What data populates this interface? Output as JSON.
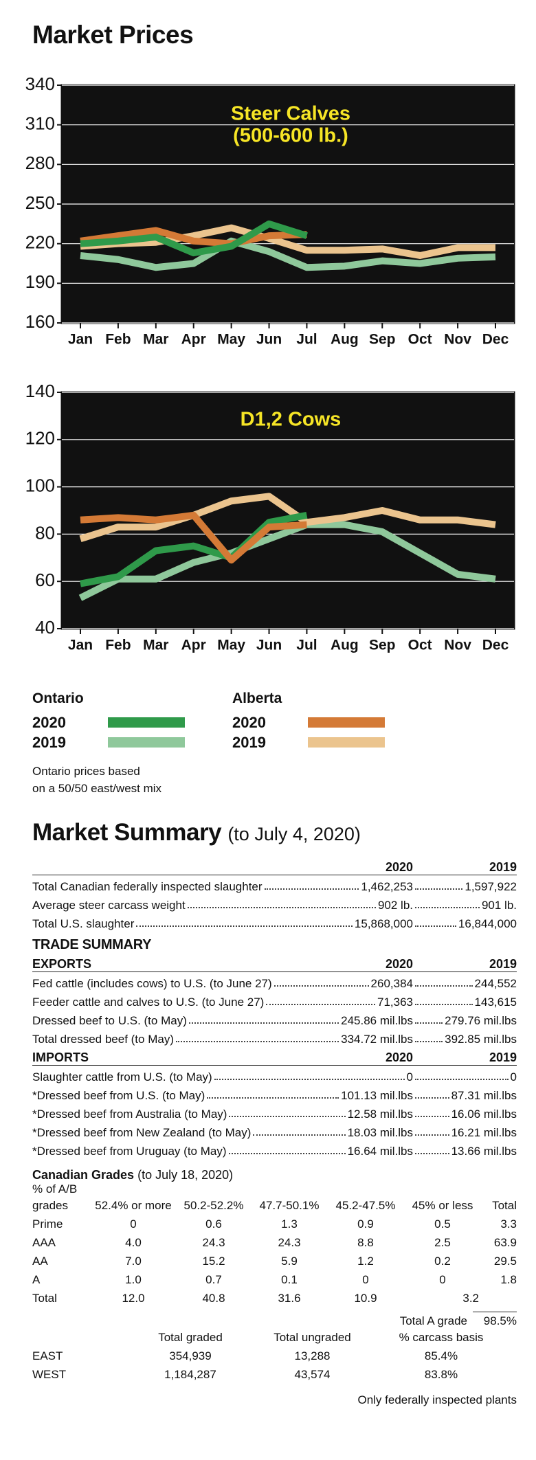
{
  "title": "Market Prices",
  "chart_data": [
    {
      "type": "line",
      "title_lines": [
        "Steer Calves",
        "(500-600 lb.)"
      ],
      "categories": [
        "Jan",
        "Feb",
        "Mar",
        "Apr",
        "May",
        "Jun",
        "Jul",
        "Aug",
        "Sep",
        "Oct",
        "Nov",
        "Dec"
      ],
      "ylim": [
        160,
        340
      ],
      "yticks": [
        160,
        190,
        220,
        250,
        280,
        310,
        340
      ],
      "grid": true,
      "series": [
        {
          "color": "#8fc89b",
          "values": [
            211,
            208,
            202,
            205,
            222,
            214,
            202,
            203,
            207,
            205,
            209,
            210
          ]
        },
        {
          "color": "#ebc48e",
          "values": [
            218,
            220,
            221,
            226,
            232,
            224,
            215,
            215,
            216,
            211,
            217,
            217
          ]
        },
        {
          "color": "#d47a36",
          "values": [
            222,
            226,
            230,
            222,
            220,
            226,
            227,
            null,
            null,
            null,
            null,
            null
          ]
        },
        {
          "color": "#2f9a4a",
          "values": [
            220,
            222,
            225,
            213,
            218,
            235,
            226,
            null,
            null,
            null,
            null,
            null
          ]
        }
      ]
    },
    {
      "type": "line",
      "title_lines": [
        "D1,2 Cows"
      ],
      "categories": [
        "Jan",
        "Feb",
        "Mar",
        "Apr",
        "May",
        "Jun",
        "Jul",
        "Aug",
        "Sep",
        "Oct",
        "Nov",
        "Dec"
      ],
      "ylim": [
        40,
        140
      ],
      "yticks": [
        40,
        60,
        80,
        100,
        120,
        140
      ],
      "grid": true,
      "series": [
        {
          "color": "#8fc89b",
          "values": [
            53,
            61,
            61,
            68,
            72,
            78,
            84,
            84,
            81,
            72,
            63,
            61
          ]
        },
        {
          "color": "#ebc48e",
          "values": [
            78,
            83,
            83,
            88,
            94,
            96,
            85,
            87,
            90,
            86,
            86,
            84
          ]
        },
        {
          "color": "#2f9a4a",
          "values": [
            59,
            62,
            73,
            75,
            70,
            85,
            88,
            null,
            null,
            null,
            null,
            null
          ]
        },
        {
          "color": "#d47a36",
          "values": [
            86,
            87,
            86,
            88,
            69,
            83,
            84,
            null,
            null,
            null,
            null,
            null
          ]
        }
      ]
    }
  ],
  "legend": [
    {
      "title": "Ontario",
      "entries": [
        {
          "name": "2020",
          "color": "#2f9a4a"
        },
        {
          "name": "2019",
          "color": "#8fc89b"
        }
      ]
    },
    {
      "title": "Alberta",
      "entries": [
        {
          "name": "2020",
          "color": "#d47a36"
        },
        {
          "name": "2019",
          "color": "#ebc48e"
        }
      ]
    }
  ],
  "note": [
    "Ontario prices based",
    "on a 50/50 east/west mix"
  ],
  "summary": {
    "title": "Market Summary",
    "subtitle": "(to July 4, 2020)",
    "columns": [
      "2020",
      "2019"
    ],
    "rows": [
      [
        "Total Canadian federally inspected slaughter",
        "1,462,253",
        "1,597,922"
      ],
      [
        "Average steer carcass weight",
        "902 lb.",
        "901 lb."
      ],
      [
        "Total U.S. slaughter",
        "15,868,000",
        "16,844,000"
      ]
    ],
    "trade_title": "TRADE SUMMARY",
    "exports": {
      "heading": [
        "EXPORTS",
        "2020",
        "2019"
      ],
      "rows": [
        [
          "Fed cattle (includes cows) to U.S. (to June 27)",
          "260,384",
          "244,552"
        ],
        [
          "Feeder cattle and calves to U.S. (to June 27)",
          "71,363",
          "143,615"
        ],
        [
          "Dressed beef to U.S. (to May)",
          "245.86 mil.lbs",
          "279.76 mil.lbs"
        ],
        [
          "Total dressed beef (to May)",
          "334.72 mil.lbs",
          "392.85 mil.lbs"
        ]
      ]
    },
    "imports": {
      "heading": [
        "IMPORTS",
        "2020",
        "2019"
      ],
      "rows": [
        [
          "Slaughter cattle from U.S. (to May)",
          "0",
          "0"
        ],
        [
          "*Dressed beef from U.S. (to May)",
          "101.13 mil.lbs",
          "87.31 mil.lbs"
        ],
        [
          "*Dressed beef from Australia (to May)",
          "12.58 mil.lbs",
          "16.06 mil.lbs"
        ],
        [
          "*Dressed beef from New Zealand (to May)",
          "18.03 mil.lbs",
          "16.21 mil.lbs"
        ],
        [
          "*Dressed beef from Uruguay (to May)",
          "16.64 mil.lbs",
          "13.66 mil.lbs"
        ]
      ]
    }
  },
  "grades": {
    "title": "Canadian Grades",
    "subtitle": "(to July 18, 2020)",
    "unit": "% of A/B",
    "header": [
      "grades",
      "52.4% or more",
      "50.2-52.2%",
      "47.7-50.1%",
      "45.2-47.5%",
      "45% or less",
      "Total"
    ],
    "rows": [
      [
        "Prime",
        "0",
        "0.6",
        "1.3",
        "0.9",
        "0.5",
        "3.3"
      ],
      [
        "AAA",
        "4.0",
        "24.3",
        "24.3",
        "8.8",
        "2.5",
        "63.9"
      ],
      [
        "AA",
        "7.0",
        "15.2",
        "5.9",
        "1.2",
        "0.2",
        "29.5"
      ],
      [
        "A",
        "1.0",
        "0.7",
        "0.1",
        "0",
        "0",
        "1.8"
      ],
      [
        "Total",
        "12.0",
        "40.8",
        "31.6",
        "10.9",
        "3.2"
      ]
    ],
    "total_a_label": "Total A grade",
    "total_a_value": "98.5%",
    "region_header": [
      "Total graded",
      "Total ungraded",
      "% carcass basis"
    ],
    "region_rows": [
      [
        "EAST",
        "354,939",
        "13,288",
        "85.4%"
      ],
      [
        "WEST",
        "1,184,287",
        "43,574",
        "83.8%"
      ]
    ],
    "footnote": "Only federally inspected plants"
  }
}
